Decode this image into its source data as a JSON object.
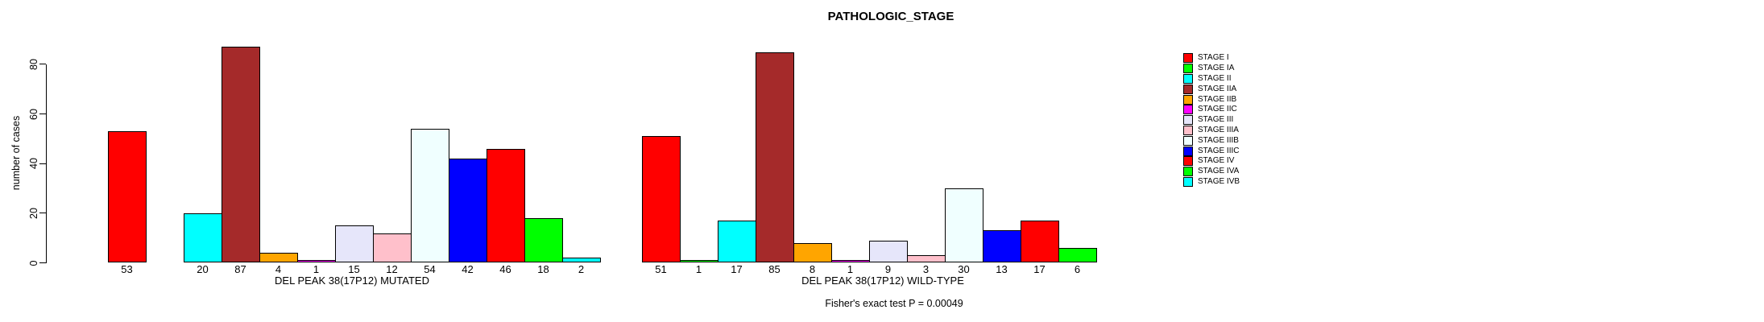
{
  "title": "PATHOLOGIC_STAGE",
  "y_axis": {
    "label": "number of cases",
    "ticks": [
      0,
      20,
      40,
      60,
      80
    ]
  },
  "footer": "Fisher's exact test P = 0.00049",
  "legend": {
    "items": [
      {
        "label": "STAGE I",
        "color": "#FF0000"
      },
      {
        "label": "STAGE IA",
        "color": "#00FF00"
      },
      {
        "label": "STAGE II",
        "color": "#00FFFF"
      },
      {
        "label": "STAGE IIA",
        "color": "#A52A2A"
      },
      {
        "label": "STAGE IIB",
        "color": "#FFA500"
      },
      {
        "label": "STAGE IIC",
        "color": "#FF00FF"
      },
      {
        "label": "STAGE III",
        "color": "#E6E6FA"
      },
      {
        "label": "STAGE IIIA",
        "color": "#FFC0CB"
      },
      {
        "label": "STAGE IIIB",
        "color": "#F0FFFF"
      },
      {
        "label": "STAGE IIIC",
        "color": "#0000FF"
      },
      {
        "label": "STAGE IV",
        "color": "#FF0000"
      },
      {
        "label": "STAGE IVA",
        "color": "#00FF00"
      },
      {
        "label": "STAGE IVB",
        "color": "#00FFFF"
      }
    ]
  },
  "chart_data": {
    "type": "bar",
    "title": "PATHOLOGIC_STAGE",
    "ylabel": "number of cases",
    "ylim": [
      0,
      87
    ],
    "grid": false,
    "legend_position": "right",
    "bar_value_labels": true,
    "categories": [
      "STAGE I",
      "STAGE IA",
      "STAGE II",
      "STAGE IIA",
      "STAGE IIB",
      "STAGE IIC",
      "STAGE III",
      "STAGE IIIA",
      "STAGE IIIB",
      "STAGE IIIC",
      "STAGE IV",
      "STAGE IVA",
      "STAGE IVB"
    ],
    "colors": [
      "#FF0000",
      "#00FF00",
      "#00FFFF",
      "#A52A2A",
      "#FFA500",
      "#FF00FF",
      "#E6E6FA",
      "#FFC0CB",
      "#F0FFFF",
      "#0000FF",
      "#FF0000",
      "#00FF00",
      "#00FFFF"
    ],
    "series": [
      {
        "name": "DEL PEAK 38(17P12) MUTATED",
        "values": [
          53,
          0,
          20,
          87,
          4,
          1,
          15,
          12,
          54,
          42,
          46,
          18,
          2
        ]
      },
      {
        "name": "DEL PEAK 38(17P12) WILD-TYPE",
        "values": [
          51,
          1,
          17,
          85,
          8,
          1,
          9,
          3,
          30,
          13,
          17,
          6,
          0
        ]
      }
    ],
    "annotation": "Fisher's exact test P = 0.00049"
  }
}
